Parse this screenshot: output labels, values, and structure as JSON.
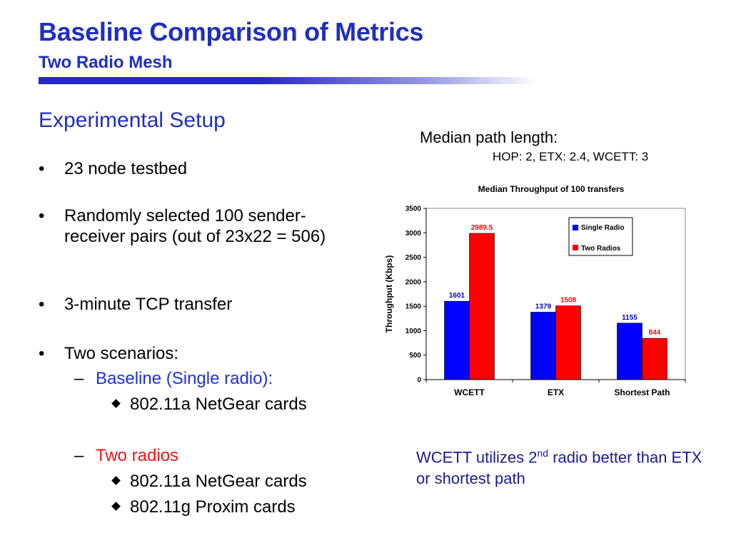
{
  "slide": {
    "title": "Baseline Comparison of Metrics",
    "subtitle": "Two Radio Mesh",
    "section_heading": "Experimental Setup",
    "bullet_char": "•",
    "dash_char": "–",
    "bullets": [
      {
        "text": "23 node testbed"
      },
      {
        "text": "Randomly selected 100 sender-receiver pairs (out of 23x22 = 506)"
      },
      {
        "text": "3-minute TCP transfer"
      },
      {
        "text": "Two scenarios:"
      }
    ],
    "scenarios": [
      {
        "label": "Baseline (Single radio):",
        "color": "#1f2fe6",
        "items": [
          "802.11a NetGear cards"
        ]
      },
      {
        "label": "Two radios",
        "color": "#ff1010",
        "items": [
          "802.11a NetGear cards",
          "802.11g Proxim cards"
        ]
      }
    ],
    "path_length_label": "Median path length:",
    "path_length_values": "HOP: 2, ETX: 2.4, WCETT: 3",
    "conclusion_pre": "WCETT utilizes 2",
    "conclusion_sup": "nd",
    "conclusion_post": " radio better than ETX or shortest path"
  },
  "chart_data": {
    "type": "bar",
    "title": "Median Throughput of 100 transfers",
    "xlabel": "",
    "ylabel": "Throughput (Kbps)",
    "categories": [
      "WCETT",
      "ETX",
      "Shortest Path"
    ],
    "series": [
      {
        "name": "Single Radio",
        "color": "#0000ff",
        "label_color": "#0000cc",
        "values": [
          1601,
          1379,
          1155
        ],
        "labels": [
          "1601",
          "1379",
          "1155"
        ]
      },
      {
        "name": "Two Radios",
        "color": "#ff0000",
        "label_color": "#ff0000",
        "values": [
          2989.5,
          1508,
          844
        ],
        "labels": [
          "2989.5",
          "1508",
          "844"
        ]
      }
    ],
    "ylim": [
      0,
      3500
    ],
    "yticks": [
      0,
      500,
      1000,
      1500,
      2000,
      2500,
      3000,
      3500
    ],
    "grid": false,
    "legend_position": "top-right"
  }
}
